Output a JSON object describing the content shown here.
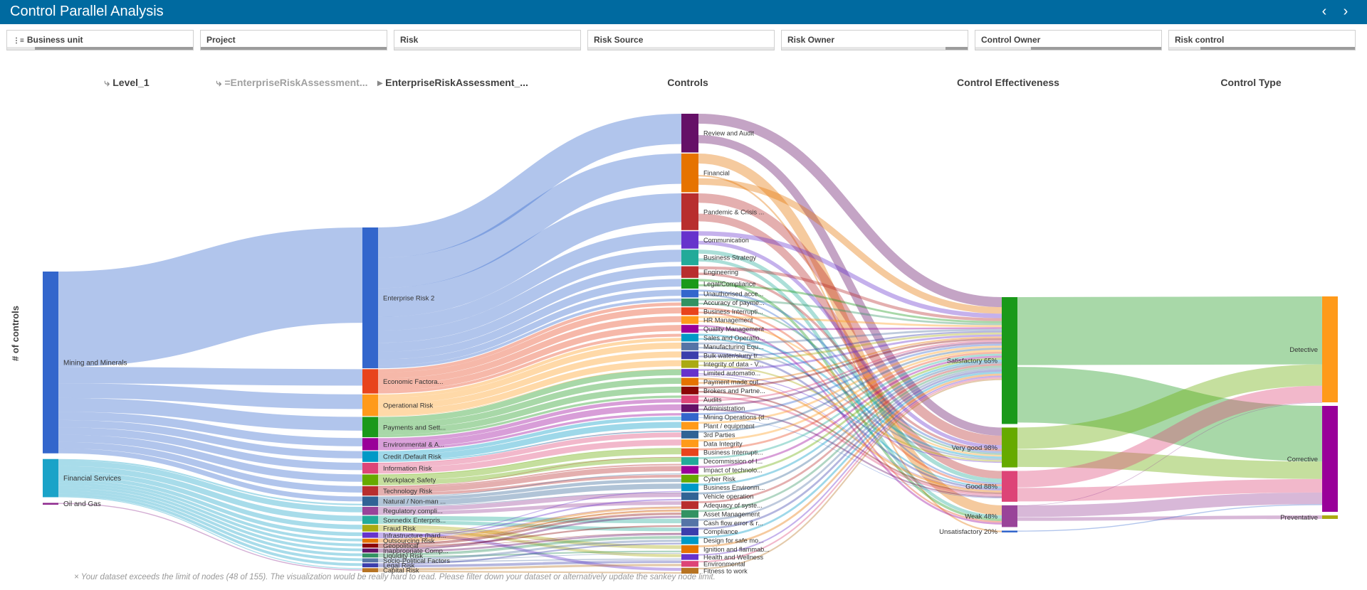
{
  "app": {
    "title": "Control Parallel Analysis",
    "prev_icon": "chevron-left-icon",
    "next_icon": "chevron-right-icon"
  },
  "filters": [
    {
      "label": "Business unit",
      "fill_start": 0.15,
      "fill_end": 1.0,
      "has_icon": true
    },
    {
      "label": "Project",
      "fill_start": 0.0,
      "fill_end": 1.0,
      "has_icon": false
    },
    {
      "label": "Risk",
      "fill_start": 0.0,
      "fill_end": 0.0,
      "has_icon": false
    },
    {
      "label": "Risk Source",
      "fill_start": 0.0,
      "fill_end": 0.0,
      "has_icon": false
    },
    {
      "label": "Risk Owner",
      "fill_start": 0.88,
      "fill_end": 1.0,
      "has_icon": false
    },
    {
      "label": "Control Owner",
      "fill_start": 0.3,
      "fill_end": 1.0,
      "has_icon": false
    },
    {
      "label": "Risk control",
      "fill_start": 0.17,
      "fill_end": 1.0,
      "has_icon": false
    }
  ],
  "columns": [
    {
      "label": "Level_1",
      "muted": false,
      "icon": "drilldown-icon"
    },
    {
      "label": "=EnterpriseRiskAssessment...",
      "muted": true,
      "icon": "drilldown-icon"
    },
    {
      "label": "EnterpriseRiskAssessment_...",
      "muted": false,
      "icon": "breadcrumb-arrow-icon"
    },
    {
      "label": "Controls",
      "muted": false,
      "icon": ""
    },
    {
      "label": "Control Effectiveness",
      "muted": false,
      "icon": ""
    },
    {
      "label": "Control Type",
      "muted": false,
      "icon": ""
    }
  ],
  "yaxis": {
    "label": "# of controls"
  },
  "warning": "× Your dataset exceeds the limit of nodes (48 of 155). The visualization would be really hard to read. Please filter down your dataset or alternatively update the sankey node limit.",
  "chart_data": {
    "type": "sankey",
    "measure": "# of controls",
    "stages": [
      {
        "name": "Level_1",
        "nodes": [
          {
            "label": "Mining and Minerals",
            "value": 200,
            "color": "#3366cc"
          },
          {
            "label": "Financial Services",
            "value": 42,
            "color": "#1aa3c8"
          },
          {
            "label": "Oil and Gas",
            "value": 2,
            "color": "#8e2a8e"
          }
        ]
      },
      {
        "name": "EnterpriseRiskAssessment_...",
        "nodes": [
          {
            "label": "Enterprise Risk 2",
            "value": 104,
            "color": "#3366cc"
          },
          {
            "label": "Economic Factora...",
            "value": 18,
            "color": "#e8441c"
          },
          {
            "label": "Operational Risk",
            "value": 16,
            "color": "#ff9a1a"
          },
          {
            "label": "Payments and Sett...",
            "value": 15,
            "color": "#1a991a"
          },
          {
            "label": "Environmental & A...",
            "value": 9,
            "color": "#990099"
          },
          {
            "label": "Credit /Default Risk",
            "value": 8,
            "color": "#0099c6"
          },
          {
            "label": "Information Risk",
            "value": 8,
            "color": "#dd4477"
          },
          {
            "label": "Workplace Safety",
            "value": 8,
            "color": "#66aa00"
          },
          {
            "label": "Technology Risk",
            "value": 7,
            "color": "#b82e2e"
          },
          {
            "label": "Natural / Non-man ...",
            "value": 7,
            "color": "#316395"
          },
          {
            "label": "Regulatory compli...",
            "value": 6,
            "color": "#994499"
          },
          {
            "label": "Sonnedix Enterpris...",
            "value": 6,
            "color": "#22aa99"
          },
          {
            "label": "Fraud Risk",
            "value": 5,
            "color": "#aaaa11"
          },
          {
            "label": "Infrastructure (hard...",
            "value": 4,
            "color": "#6633cc"
          },
          {
            "label": "Outsourcing Risk",
            "value": 3,
            "color": "#e67300"
          },
          {
            "label": "Geopolitical",
            "value": 3,
            "color": "#8b0707"
          },
          {
            "label": "Inappropriate Comp...",
            "value": 3,
            "color": "#651067"
          },
          {
            "label": "Liquidity Risk",
            "value": 3,
            "color": "#329262"
          },
          {
            "label": "Socio-Political Factors",
            "value": 3,
            "color": "#5574a6"
          },
          {
            "label": "Legal Risk",
            "value": 3,
            "color": "#3b3eac"
          },
          {
            "label": "Capital Risk",
            "value": 3,
            "color": "#b77322"
          }
        ]
      },
      {
        "name": "Controls",
        "nodes": [
          {
            "label": "Review and Audit",
            "value": 20,
            "color": "#651067"
          },
          {
            "label": "Financial",
            "value": 20,
            "color": "#e67300"
          },
          {
            "label": "Pandemic & Crisis ...",
            "value": 19,
            "color": "#b82e2e"
          },
          {
            "label": "Communication",
            "value": 9,
            "color": "#6633cc"
          },
          {
            "label": "Business Strategy",
            "value": 8,
            "color": "#22aa99"
          },
          {
            "label": "Engineering",
            "value": 6,
            "color": "#b82e2e"
          },
          {
            "label": "Legal/Compliance",
            "value": 5,
            "color": "#1a991a"
          },
          {
            "label": "Unauthorised acce...",
            "value": 4,
            "color": "#3366cc"
          },
          {
            "label": "Accuracy of payme...",
            "value": 4,
            "color": "#329262"
          },
          {
            "label": "Business Interrupti...",
            "value": 4,
            "color": "#e8441c"
          },
          {
            "label": "HR Management",
            "value": 4,
            "color": "#ff9a1a"
          },
          {
            "label": "Quality Management",
            "value": 4,
            "color": "#990099"
          },
          {
            "label": "Sales and Operatio...",
            "value": 4,
            "color": "#0099c6"
          },
          {
            "label": "Manufacturing Equ...",
            "value": 4,
            "color": "#5574a6"
          },
          {
            "label": "Bulk water/slurry tr...",
            "value": 4,
            "color": "#3b3eac"
          },
          {
            "label": "Integrity of data - V...",
            "value": 4,
            "color": "#aaaa11"
          },
          {
            "label": "Limited automatio...",
            "value": 4,
            "color": "#6633cc"
          },
          {
            "label": "Payment made out...",
            "value": 4,
            "color": "#e67300"
          },
          {
            "label": "Brokers and Partne...",
            "value": 4,
            "color": "#8b0707"
          },
          {
            "label": "Audits",
            "value": 4,
            "color": "#dd4477"
          },
          {
            "label": "Administration",
            "value": 4,
            "color": "#651067"
          },
          {
            "label": "Mining Operations (d...",
            "value": 4,
            "color": "#3366cc"
          },
          {
            "label": "Plant / equipment",
            "value": 4,
            "color": "#ff9a1a"
          },
          {
            "label": "3rd Parties",
            "value": 4,
            "color": "#316395"
          },
          {
            "label": "Data Integrity",
            "value": 4,
            "color": "#ff9a1a"
          },
          {
            "label": "Business Interrupti...",
            "value": 4,
            "color": "#e8441c"
          },
          {
            "label": "Decommission of I...",
            "value": 4,
            "color": "#22aa99"
          },
          {
            "label": "Impact of technolo...",
            "value": 4,
            "color": "#990099"
          },
          {
            "label": "Cyber Risk",
            "value": 4,
            "color": "#66aa00"
          },
          {
            "label": "Business Environm...",
            "value": 4,
            "color": "#0099c6"
          },
          {
            "label": "Vehicle operation",
            "value": 4,
            "color": "#316395"
          },
          {
            "label": "Adequacy of syste...",
            "value": 4,
            "color": "#b82e2e"
          },
          {
            "label": "Asset Management",
            "value": 4,
            "color": "#329262"
          },
          {
            "label": "Cash flow error & r...",
            "value": 4,
            "color": "#5574a6"
          },
          {
            "label": "Compliance",
            "value": 4,
            "color": "#3b3eac"
          },
          {
            "label": "Design for safe mo...",
            "value": 4,
            "color": "#0099c6"
          },
          {
            "label": "Ignition and flammab...",
            "value": 4,
            "color": "#e67300"
          },
          {
            "label": "Health and Wellness",
            "value": 3,
            "color": "#6633cc"
          },
          {
            "label": "Environmental",
            "value": 3,
            "color": "#dd4477"
          },
          {
            "label": "Fitness to work",
            "value": 3,
            "color": "#b77322"
          }
        ]
      },
      {
        "name": "Control Effectiveness",
        "nodes": [
          {
            "label": "Satisfactory 65%",
            "value": 140,
            "color": "#1a991a"
          },
          {
            "label": "Very good 98%",
            "value": 44,
            "color": "#66aa00"
          },
          {
            "label": "Good 88%",
            "value": 34,
            "color": "#dd4477"
          },
          {
            "label": "Weak 48%",
            "value": 24,
            "color": "#994499"
          },
          {
            "label": "Unsatisfactory 20%",
            "value": 2,
            "color": "#3366cc"
          }
        ]
      },
      {
        "name": "Control Type",
        "nodes": [
          {
            "label": "Detective",
            "value": 120,
            "color": "#ff9a1a"
          },
          {
            "label": "Corrective",
            "value": 120,
            "color": "#990099"
          },
          {
            "label": "Preventative",
            "value": 4,
            "color": "#aaaa11"
          }
        ]
      }
    ]
  }
}
